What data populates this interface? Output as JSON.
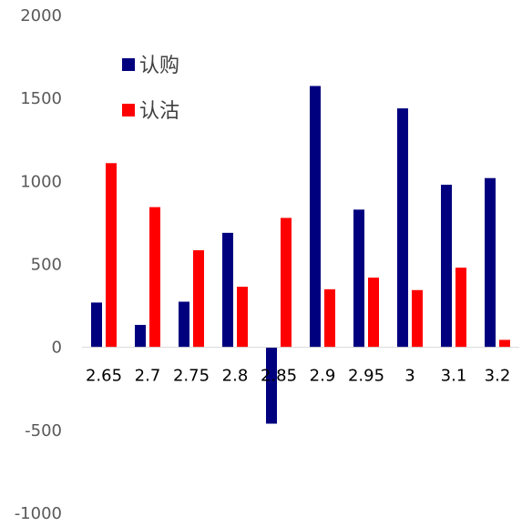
{
  "chart_data": {
    "type": "bar",
    "categories": [
      "2.65",
      "2.7",
      "2.75",
      "2.8",
      "2.85",
      "2.9",
      "2.95",
      "3",
      "3.1",
      "3.2"
    ],
    "series": [
      {
        "name": "认购",
        "color": "#00007F",
        "values": [
          270,
          135,
          275,
          690,
          -460,
          1575,
          830,
          1440,
          980,
          1020
        ]
      },
      {
        "name": "认沽",
        "color": "#FF0000",
        "values": [
          1110,
          845,
          585,
          365,
          780,
          350,
          420,
          345,
          480,
          45
        ]
      }
    ],
    "ylim": [
      -1000,
      2000
    ],
    "yticks": [
      "-1000",
      "-500",
      "0",
      "500",
      "1000",
      "1500",
      "2000"
    ],
    "xlabel": "",
    "ylabel": "",
    "legend": "top-left",
    "grid": false
  }
}
